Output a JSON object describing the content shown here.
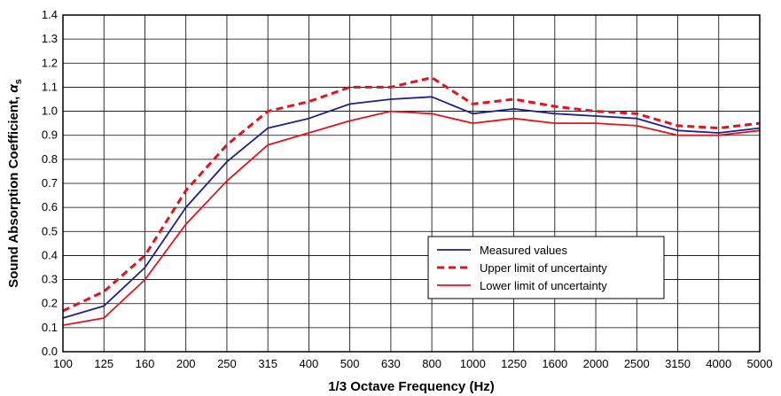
{
  "chart_data": {
    "type": "line",
    "xlabel": "1/3 Octave Frequency (Hz)",
    "ylabel": "Sound Absorption Coefficient, ",
    "ylabel_symbol": "α",
    "ylabel_subscript": "s",
    "categories": [
      "100",
      "125",
      "160",
      "200",
      "250",
      "315",
      "400",
      "500",
      "630",
      "800",
      "1000",
      "1250",
      "1600",
      "2000",
      "2500",
      "3150",
      "4000",
      "5000"
    ],
    "ylim": [
      0,
      1.4
    ],
    "yticks": [
      "0.0",
      "0.1",
      "0.2",
      "0.3",
      "0.4",
      "0.5",
      "0.6",
      "0.7",
      "0.8",
      "0.9",
      "1.0",
      "1.1",
      "1.2",
      "1.3",
      "1.4"
    ],
    "grid": true,
    "legend_position": "lower-right",
    "series": [
      {
        "name": "Measured values",
        "color": "#1f1f8c",
        "style": "solid",
        "values": [
          0.14,
          0.19,
          0.35,
          0.6,
          0.79,
          0.93,
          0.97,
          1.03,
          1.05,
          1.06,
          0.99,
          1.01,
          0.99,
          0.98,
          0.97,
          0.92,
          0.91,
          0.93
        ]
      },
      {
        "name": "Upper limit of uncertainty",
        "color": "#e0141e",
        "style": "dashed",
        "values": [
          0.17,
          0.25,
          0.4,
          0.67,
          0.86,
          1.0,
          1.04,
          1.1,
          1.1,
          1.14,
          1.03,
          1.05,
          1.02,
          1.0,
          0.99,
          0.94,
          0.93,
          0.95
        ]
      },
      {
        "name": "Lower limit of uncertainty",
        "color": "#e0141e",
        "style": "solid",
        "values": [
          0.11,
          0.14,
          0.3,
          0.53,
          0.71,
          0.86,
          0.91,
          0.96,
          1.0,
          0.99,
          0.95,
          0.97,
          0.95,
          0.95,
          0.94,
          0.9,
          0.9,
          0.92
        ]
      }
    ]
  }
}
